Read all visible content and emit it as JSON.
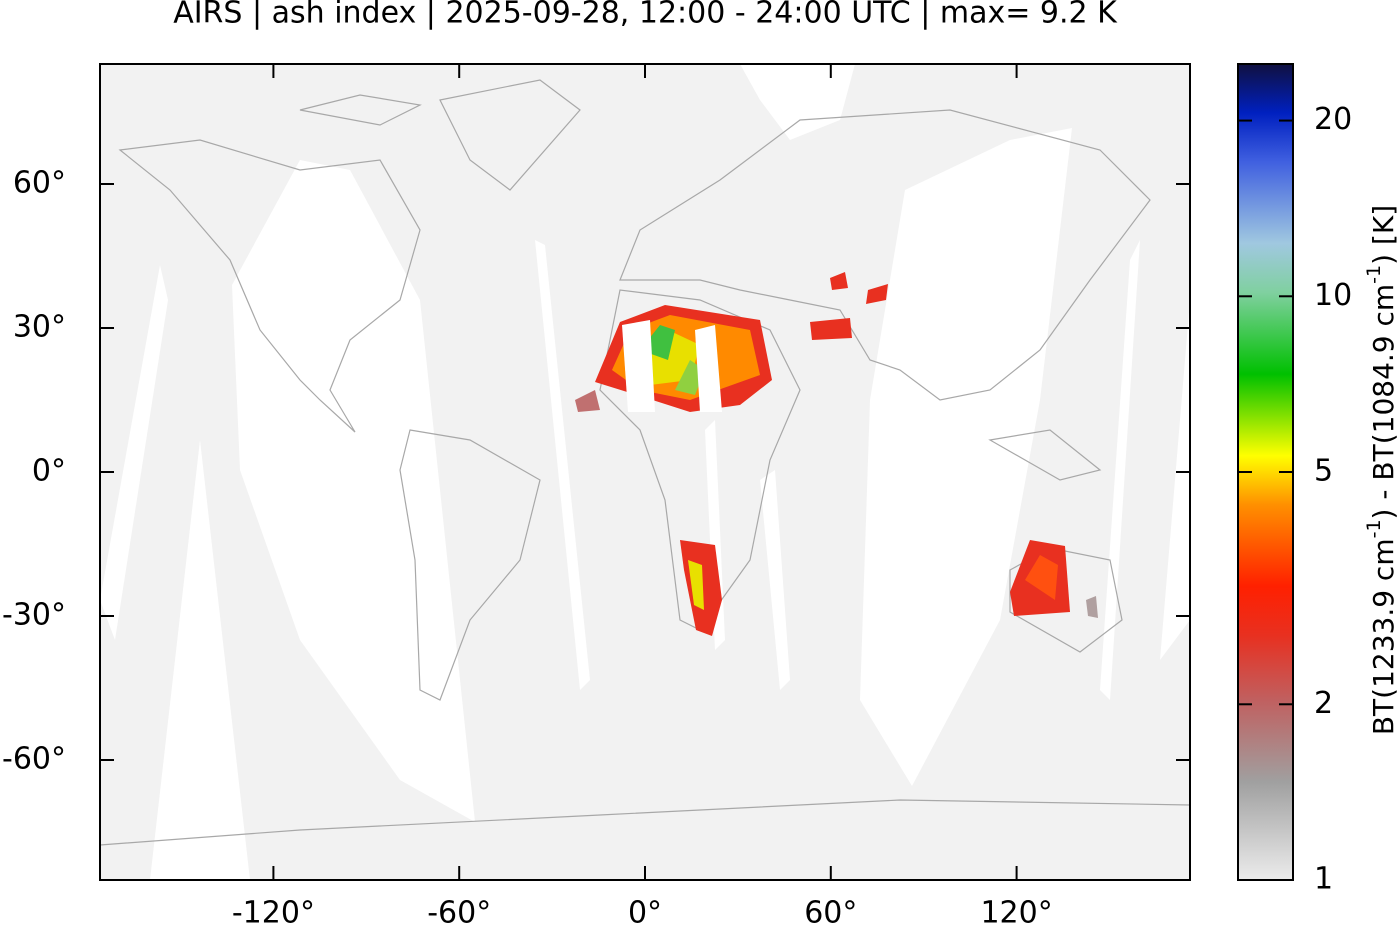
{
  "title": "AIRS | ash index | 2025-09-28, 12:00 - 24:00 UTC | max= 9.2 K",
  "map": {
    "xlim": [
      -176,
      176
    ],
    "ylim": [
      -85,
      85
    ],
    "xticks": [
      {
        "value": -120,
        "label": "-120°"
      },
      {
        "value": -60,
        "label": "-60°"
      },
      {
        "value": 0,
        "label": "0°"
      },
      {
        "value": 60,
        "label": "60°"
      },
      {
        "value": 120,
        "label": "120°"
      }
    ],
    "yticks": [
      {
        "value": 60,
        "label": "60°"
      },
      {
        "value": 30,
        "label": "30°"
      },
      {
        "value": 0,
        "label": "0°"
      },
      {
        "value": -30,
        "label": "-30°"
      },
      {
        "value": -60,
        "label": "-60°"
      }
    ]
  },
  "colorbar": {
    "log_scale": true,
    "lim": [
      1,
      25
    ],
    "ticks": [
      1,
      2,
      5,
      10,
      20
    ],
    "label_parts": [
      "BT(1233.9 cm",
      "-1",
      ") - BT(1084.9 cm",
      "-1",
      ") [K]"
    ]
  }
}
